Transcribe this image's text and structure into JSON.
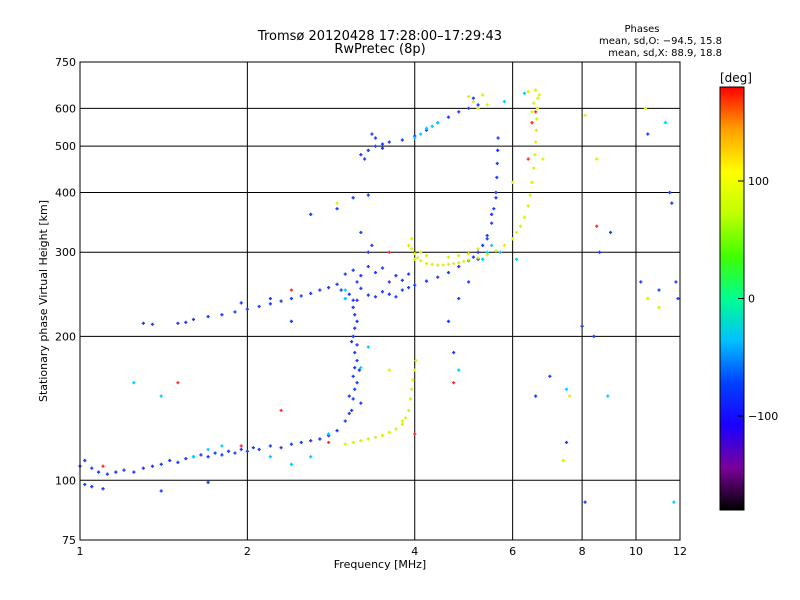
{
  "chart_data": {
    "type": "scatter",
    "title": "Tromsø 20120428 17:28:00–17:29:43",
    "subtitle": "RwPretec (8p)",
    "xlabel": "Frequency [MHz]",
    "ylabel": "Stationary phase Virtual Height [km]",
    "x_scale": "log",
    "y_scale": "log",
    "xlim": [
      1,
      12
    ],
    "ylim": [
      75,
      750
    ],
    "x_ticks": [
      1,
      2,
      4,
      6,
      8,
      10,
      12
    ],
    "x_tick_labels": [
      "1",
      "2",
      "4",
      "6",
      "8",
      "10",
      "12"
    ],
    "y_ticks": [
      75,
      100,
      200,
      300,
      400,
      500,
      600,
      750
    ],
    "y_tick_labels": [
      "75",
      "100",
      "200",
      "300",
      "400",
      "500",
      "600",
      "750"
    ],
    "grid": true,
    "phase_stats": {
      "title": "Phases",
      "line_o": "mean, sd,O: −94.5, 15.8",
      "line_x": "mean, sd,X: 88.9, 18.8"
    },
    "colorbar": {
      "label": "[deg]",
      "min": -180,
      "max": 180,
      "ticks": [
        100,
        0,
        -100
      ],
      "tick_labels": [
        "100",
        "0",
        "−100"
      ],
      "colormap": [
        "#000000",
        "#7a0099",
        "#1a00ff",
        "#0040ff",
        "#00c0ff",
        "#00ff90",
        "#40ff00",
        "#c0ff00",
        "#ffff00",
        "#ffa000",
        "#ff0000"
      ]
    },
    "series": [
      {
        "color": "#1e3cff",
        "mode": "O",
        "points": [
          [
            1.0,
            107
          ],
          [
            1.02,
            110
          ],
          [
            1.05,
            106
          ],
          [
            1.08,
            104
          ],
          [
            1.12,
            103
          ],
          [
            1.16,
            104
          ],
          [
            1.2,
            105
          ],
          [
            1.25,
            104
          ],
          [
            1.3,
            106
          ],
          [
            1.35,
            107
          ],
          [
            1.4,
            108
          ],
          [
            1.45,
            110
          ],
          [
            1.5,
            109
          ],
          [
            1.55,
            111
          ],
          [
            1.6,
            112
          ],
          [
            1.65,
            113
          ],
          [
            1.7,
            112
          ],
          [
            1.75,
            114
          ],
          [
            1.8,
            113
          ],
          [
            1.85,
            115
          ],
          [
            1.9,
            114
          ],
          [
            1.95,
            116
          ],
          [
            2.0,
            115
          ],
          [
            2.05,
            117
          ],
          [
            2.1,
            116
          ],
          [
            2.2,
            118
          ],
          [
            2.3,
            117
          ],
          [
            2.4,
            119
          ],
          [
            2.5,
            120
          ],
          [
            2.6,
            121
          ],
          [
            2.7,
            122
          ],
          [
            2.8,
            124
          ],
          [
            2.9,
            127
          ],
          [
            3.0,
            133
          ],
          [
            3.05,
            138
          ],
          [
            1.02,
            98
          ],
          [
            1.05,
            97
          ],
          [
            1.1,
            96
          ],
          [
            1.4,
            95
          ],
          [
            1.7,
            99
          ],
          [
            3.08,
            140
          ],
          [
            3.1,
            148
          ],
          [
            3.12,
            155
          ],
          [
            3.15,
            160
          ],
          [
            3.1,
            165
          ],
          [
            3.12,
            172
          ],
          [
            3.15,
            178
          ],
          [
            3.12,
            185
          ],
          [
            3.15,
            192
          ],
          [
            3.1,
            200
          ],
          [
            3.12,
            208
          ],
          [
            3.15,
            215
          ],
          [
            3.12,
            222
          ],
          [
            3.1,
            230
          ],
          [
            3.15,
            238
          ],
          [
            3.2,
            145
          ],
          [
            3.18,
            170
          ],
          [
            3.05,
            150
          ],
          [
            3.08,
            195
          ],
          [
            1.3,
            213
          ],
          [
            1.35,
            212
          ],
          [
            1.5,
            213
          ],
          [
            1.55,
            214
          ],
          [
            1.6,
            217
          ],
          [
            1.7,
            220
          ],
          [
            1.8,
            222
          ],
          [
            1.9,
            225
          ],
          [
            2.0,
            228
          ],
          [
            2.1,
            231
          ],
          [
            2.2,
            234
          ],
          [
            2.3,
            237
          ],
          [
            2.4,
            240
          ],
          [
            2.5,
            243
          ],
          [
            2.6,
            246
          ],
          [
            2.7,
            250
          ],
          [
            2.8,
            253
          ],
          [
            2.9,
            257
          ],
          [
            2.95,
            250
          ],
          [
            3.0,
            240
          ],
          [
            3.05,
            245
          ],
          [
            3.1,
            238
          ],
          [
            3.15,
            260
          ],
          [
            3.2,
            252
          ],
          [
            3.3,
            244
          ],
          [
            3.4,
            242
          ],
          [
            3.5,
            248
          ],
          [
            3.6,
            245
          ],
          [
            3.7,
            242
          ],
          [
            3.8,
            250
          ],
          [
            3.9,
            253
          ],
          [
            4.0,
            256
          ],
          [
            4.2,
            261
          ],
          [
            4.4,
            266
          ],
          [
            4.6,
            272
          ],
          [
            4.8,
            280
          ],
          [
            5.0,
            288
          ],
          [
            5.1,
            293
          ],
          [
            5.2,
            300
          ],
          [
            5.3,
            310
          ],
          [
            5.4,
            325
          ],
          [
            5.5,
            345
          ],
          [
            5.55,
            370
          ],
          [
            5.6,
            400
          ],
          [
            5.62,
            430
          ],
          [
            5.63,
            460
          ],
          [
            5.64,
            490
          ],
          [
            5.65,
            520
          ],
          [
            3.0,
            270
          ],
          [
            3.1,
            275
          ],
          [
            3.2,
            268
          ],
          [
            3.3,
            280
          ],
          [
            3.4,
            272
          ],
          [
            3.5,
            278
          ],
          [
            3.6,
            260
          ],
          [
            3.7,
            268
          ],
          [
            3.8,
            262
          ],
          [
            3.9,
            270
          ],
          [
            3.3,
            300
          ],
          [
            3.35,
            310
          ],
          [
            3.2,
            330
          ],
          [
            3.2,
            480
          ],
          [
            3.3,
            490
          ],
          [
            3.4,
            500
          ],
          [
            3.5,
            505
          ],
          [
            3.6,
            510
          ],
          [
            3.8,
            515
          ],
          [
            4.0,
            525
          ],
          [
            4.2,
            540
          ],
          [
            4.4,
            560
          ],
          [
            4.6,
            575
          ],
          [
            4.8,
            590
          ],
          [
            5.0,
            600
          ],
          [
            5.2,
            610
          ],
          [
            5.1,
            630
          ],
          [
            3.35,
            530
          ],
          [
            3.4,
            520
          ],
          [
            3.25,
            470
          ],
          [
            3.5,
            495
          ],
          [
            4.8,
            240
          ],
          [
            5.0,
            260
          ],
          [
            5.2,
            290
          ],
          [
            5.4,
            320
          ],
          [
            5.5,
            360
          ],
          [
            5.6,
            390
          ],
          [
            8.0,
            210
          ],
          [
            8.4,
            200
          ],
          [
            8.6,
            300
          ],
          [
            10.5,
            530
          ],
          [
            11.5,
            400
          ],
          [
            11.6,
            380
          ],
          [
            11.8,
            260
          ],
          [
            11.9,
            240
          ],
          [
            10.2,
            260
          ],
          [
            11.0,
            250
          ],
          [
            9.0,
            330
          ],
          [
            8.1,
            90
          ],
          [
            7.5,
            120
          ],
          [
            6.6,
            150
          ],
          [
            7.0,
            165
          ],
          [
            4.7,
            185
          ],
          [
            4.6,
            215
          ],
          [
            3.1,
            390
          ],
          [
            3.3,
            395
          ],
          [
            2.9,
            370
          ],
          [
            2.6,
            360
          ],
          [
            2.2,
            240
          ],
          [
            1.95,
            235
          ],
          [
            2.4,
            215
          ]
        ]
      },
      {
        "color": "#e0f000",
        "mode": "X",
        "points": [
          [
            3.0,
            119
          ],
          [
            3.1,
            120
          ],
          [
            3.2,
            121
          ],
          [
            3.3,
            122
          ],
          [
            3.4,
            123
          ],
          [
            3.5,
            124
          ],
          [
            3.6,
            126
          ],
          [
            3.7,
            128
          ],
          [
            3.8,
            131
          ],
          [
            3.85,
            135
          ],
          [
            3.9,
            140
          ],
          [
            3.93,
            148
          ],
          [
            3.95,
            155
          ],
          [
            3.97,
            162
          ],
          [
            4.0,
            170
          ],
          [
            4.02,
            178
          ],
          [
            3.8,
            133
          ],
          [
            3.9,
            310
          ],
          [
            3.95,
            305
          ],
          [
            4.0,
            298
          ],
          [
            4.05,
            292
          ],
          [
            4.1,
            288
          ],
          [
            4.2,
            284
          ],
          [
            4.3,
            283
          ],
          [
            4.4,
            282
          ],
          [
            4.5,
            282
          ],
          [
            4.6,
            283
          ],
          [
            4.7,
            284
          ],
          [
            4.8,
            285
          ],
          [
            4.9,
            287
          ],
          [
            5.0,
            289
          ],
          [
            5.2,
            292
          ],
          [
            5.4,
            296
          ],
          [
            5.6,
            302
          ],
          [
            5.8,
            310
          ],
          [
            6.0,
            320
          ],
          [
            6.1,
            330
          ],
          [
            6.2,
            340
          ],
          [
            6.3,
            355
          ],
          [
            6.4,
            375
          ],
          [
            6.45,
            395
          ],
          [
            6.5,
            420
          ],
          [
            6.55,
            450
          ],
          [
            6.58,
            480
          ],
          [
            6.6,
            510
          ],
          [
            6.62,
            540
          ],
          [
            6.63,
            570
          ],
          [
            6.65,
            600
          ],
          [
            6.66,
            630
          ],
          [
            6.55,
            615
          ],
          [
            6.5,
            590
          ],
          [
            3.95,
            320
          ],
          [
            4.0,
            290
          ],
          [
            4.1,
            300
          ],
          [
            4.2,
            295
          ],
          [
            4.6,
            293
          ],
          [
            4.8,
            295
          ],
          [
            5.0,
            298
          ],
          [
            5.2,
            305
          ],
          [
            5.1,
            620
          ],
          [
            5.3,
            640
          ],
          [
            5.2,
            600
          ],
          [
            5.4,
            610
          ],
          [
            5.0,
            635
          ],
          [
            6.4,
            650
          ],
          [
            6.6,
            655
          ],
          [
            6.7,
            640
          ],
          [
            6.5,
            560
          ],
          [
            2.9,
            380
          ],
          [
            8.1,
            580
          ],
          [
            8.5,
            470
          ],
          [
            10.4,
            600
          ],
          [
            10.5,
            240
          ],
          [
            11.0,
            230
          ],
          [
            7.6,
            150
          ],
          [
            7.4,
            110
          ],
          [
            6.8,
            470
          ],
          [
            6.0,
            420
          ],
          [
            3.6,
            170
          ]
        ]
      },
      {
        "color": "#00d0ff",
        "mode": "mixed",
        "points": [
          [
            1.6,
            112
          ],
          [
            1.7,
            116
          ],
          [
            1.8,
            118
          ],
          [
            2.4,
            108
          ],
          [
            2.6,
            112
          ],
          [
            2.8,
            125
          ],
          [
            3.2,
            172
          ],
          [
            3.3,
            190
          ],
          [
            3.0,
            240
          ],
          [
            5.5,
            310
          ],
          [
            5.4,
            300
          ],
          [
            5.3,
            290
          ],
          [
            4.4,
            560
          ],
          [
            4.3,
            550
          ],
          [
            4.2,
            545
          ],
          [
            4.1,
            530
          ],
          [
            4.0,
            520
          ],
          [
            8.9,
            150
          ],
          [
            4.8,
            170
          ],
          [
            5.8,
            620
          ],
          [
            6.3,
            645
          ],
          [
            7.5,
            155
          ],
          [
            11.7,
            90
          ],
          [
            6.1,
            290
          ],
          [
            5.7,
            300
          ],
          [
            11.3,
            560
          ],
          [
            1.25,
            160
          ],
          [
            1.4,
            150
          ],
          [
            2.2,
            112
          ],
          [
            3.0,
            250
          ]
        ]
      },
      {
        "color": "#ff3030",
        "mode": "mixed",
        "points": [
          [
            1.95,
            118
          ],
          [
            2.8,
            120
          ],
          [
            3.6,
            300
          ],
          [
            4.0,
            125
          ],
          [
            6.5,
            560
          ],
          [
            6.6,
            590
          ],
          [
            8.5,
            340
          ],
          [
            4.7,
            160
          ],
          [
            1.5,
            160
          ],
          [
            2.4,
            250
          ],
          [
            1.1,
            107
          ],
          [
            6.4,
            470
          ],
          [
            2.3,
            140
          ]
        ]
      }
    ]
  }
}
